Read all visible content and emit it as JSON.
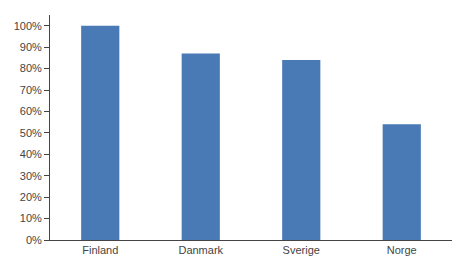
{
  "chart_data": {
    "type": "bar",
    "categories": [
      "Finland",
      "Danmark",
      "Sverige",
      "Norge"
    ],
    "values": [
      100,
      87,
      84,
      54
    ],
    "color": "#4a7ab5",
    "ylim": [
      0,
      105
    ],
    "yticks": [
      {
        "value": 0,
        "label": "0%"
      },
      {
        "value": 10,
        "label": "10%"
      },
      {
        "value": 20,
        "label": "20%"
      },
      {
        "value": 30,
        "label": "30%"
      },
      {
        "value": 40,
        "label": "40%"
      },
      {
        "value": 50,
        "label": "50%"
      },
      {
        "value": 60,
        "label": "60%"
      },
      {
        "value": 70,
        "label": "70%"
      },
      {
        "value": 80,
        "label": "80%"
      },
      {
        "value": 90,
        "label": "90%"
      },
      {
        "value": 100,
        "label": "100%"
      }
    ],
    "grid": false
  }
}
